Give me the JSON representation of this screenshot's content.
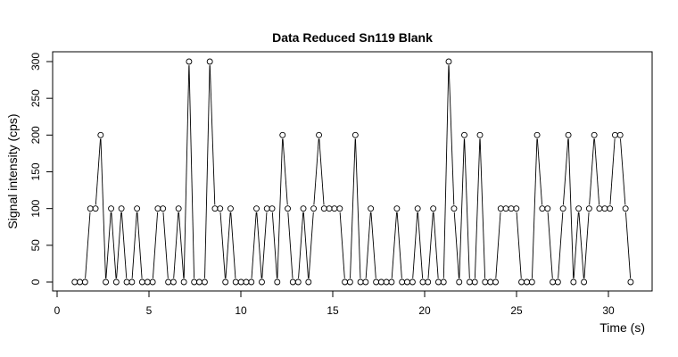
{
  "chart_data": {
    "type": "line",
    "title": "Data Reduced Sn119 Blank",
    "xlabel": "Time (s)",
    "ylabel": "Signal intensity (cps)",
    "xlim": [
      0,
      32
    ],
    "ylim": [
      0,
      300
    ],
    "xticks": [
      0,
      5,
      10,
      15,
      20,
      25,
      30
    ],
    "yticks": [
      0,
      50,
      100,
      150,
      200,
      250,
      300
    ],
    "markers": "open-circle",
    "line_color": "#000000",
    "x": [
      0.96,
      1.24,
      1.52,
      1.81,
      2.09,
      2.37,
      2.65,
      2.94,
      3.22,
      3.5,
      3.79,
      4.07,
      4.35,
      4.63,
      4.92,
      5.2,
      5.48,
      5.76,
      6.05,
      6.33,
      6.61,
      6.9,
      7.18,
      7.46,
      7.74,
      8.03,
      8.31,
      8.59,
      8.87,
      9.16,
      9.44,
      9.72,
      10.01,
      10.29,
      10.57,
      10.85,
      11.14,
      11.42,
      11.7,
      11.98,
      12.27,
      12.55,
      12.83,
      13.12,
      13.4,
      13.68,
      13.96,
      14.25,
      14.53,
      14.81,
      15.09,
      15.38,
      15.66,
      15.94,
      16.23,
      16.51,
      16.79,
      17.07,
      17.36,
      17.64,
      17.92,
      18.2,
      18.49,
      18.77,
      19.05,
      19.34,
      19.62,
      19.9,
      20.18,
      20.47,
      20.75,
      21.03,
      21.31,
      21.6,
      21.88,
      22.16,
      22.45,
      22.73,
      23.01,
      23.29,
      23.58,
      23.86,
      24.14,
      24.42,
      24.71,
      24.99,
      25.27,
      25.56,
      25.84,
      26.12,
      26.4,
      26.69,
      26.97,
      27.25,
      27.53,
      27.82,
      28.1,
      28.38,
      28.67,
      28.95,
      29.23,
      29.51,
      29.8,
      30.08,
      30.36,
      30.64,
      30.93,
      31.21
    ],
    "y": [
      0,
      0,
      0,
      100,
      100,
      200,
      0,
      100,
      0,
      100,
      0,
      0,
      100,
      0,
      0,
      0,
      100,
      100,
      0,
      0,
      100,
      0,
      300,
      0,
      0,
      0,
      300,
      100,
      100,
      0,
      100,
      0,
      0,
      0,
      0,
      100,
      0,
      100,
      100,
      0,
      200,
      100,
      0,
      0,
      100,
      0,
      100,
      200,
      100,
      100,
      100,
      100,
      0,
      0,
      200,
      0,
      0,
      100,
      0,
      0,
      0,
      0,
      100,
      0,
      0,
      0,
      100,
      0,
      0,
      100,
      0,
      0,
      300,
      100,
      0,
      200,
      0,
      0,
      200,
      0,
      0,
      0,
      100,
      100,
      100,
      100,
      0,
      0,
      0,
      200,
      100,
      100,
      0,
      0,
      100,
      200,
      0,
      100,
      0,
      100,
      200,
      100,
      100,
      100,
      200,
      200,
      100,
      0
    ]
  }
}
